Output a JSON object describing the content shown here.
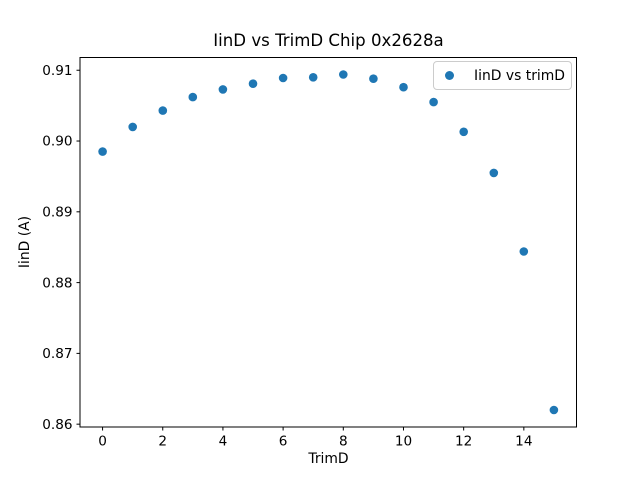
{
  "chart_data": {
    "type": "scatter",
    "title": "IinD vs TrimD Chip 0x2628a",
    "xlabel": "TrimD",
    "ylabel": "IinD (A)",
    "legend": {
      "label": "IinD vs trimD",
      "position": "upper right",
      "marker": "circle-icon"
    },
    "series": [
      {
        "name": "IinD vs trimD",
        "color": "#1f77b4",
        "x": [
          0,
          1,
          2,
          3,
          4,
          5,
          6,
          7,
          8,
          9,
          10,
          11,
          12,
          13,
          14,
          15
        ],
        "y": [
          0.8985,
          0.902,
          0.9043,
          0.9062,
          0.9073,
          0.9081,
          0.9089,
          0.909,
          0.9094,
          0.9088,
          0.9076,
          0.9055,
          0.9013,
          0.8955,
          0.8844,
          0.862
        ]
      }
    ],
    "xlim": [
      -0.75,
      15.75
    ],
    "ylim": [
      0.8596,
      0.9118
    ],
    "xticks": [
      0,
      2,
      4,
      6,
      8,
      10,
      12,
      14
    ],
    "xtick_labels": [
      "0",
      "2",
      "4",
      "6",
      "8",
      "10",
      "12",
      "14"
    ],
    "yticks": [
      0.86,
      0.87,
      0.88,
      0.89,
      0.9,
      0.91
    ],
    "ytick_labels": [
      "0.86",
      "0.87",
      "0.88",
      "0.89",
      "0.90",
      "0.91"
    ],
    "grid": false,
    "plot_background": "#ffffff",
    "axes_color": "#000000",
    "legend_border_color": "#cccccc",
    "marker_size_px": 8.6
  }
}
